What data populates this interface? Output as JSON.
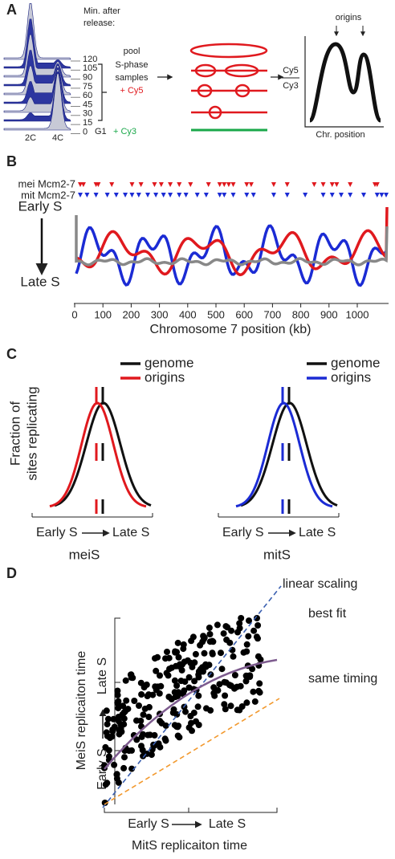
{
  "panel_a": {
    "letter": "A",
    "release_label_1": "Min. after",
    "release_label_2": "release:",
    "minutes": [
      120,
      105,
      90,
      75,
      60,
      45,
      30,
      15,
      0
    ],
    "dna_labels": [
      "2C",
      "4C"
    ],
    "pool_lines": [
      "pool",
      "S-phase",
      "samples"
    ],
    "cy5_label": "+ Cy5",
    "g1_label": "G1",
    "cy3_label": "+ Cy3",
    "ratio_top": "Cy5",
    "ratio_bottom": "Cy3",
    "origins_label": "origins",
    "chr_position_label": "Chr. position"
  },
  "panel_b": {
    "letter": "B",
    "mei_label": "mei Mcm2-7",
    "mit_label": "mit Mcm2-7",
    "early_label": "Early S",
    "late_label": "Late S",
    "x_label": "Chromosome 7 position (kb)",
    "xlim": [
      0,
      1100
    ],
    "xticks": [
      0,
      100,
      200,
      300,
      400,
      500,
      600,
      700,
      800,
      900,
      1000
    ]
  },
  "panel_c": {
    "letter": "C",
    "y_label_1": "Fraction of",
    "y_label_2": "sites replicating",
    "genome_label": "genome",
    "origins_label": "origins",
    "early_label": "Early S",
    "late_label": "Late S",
    "left_title": "meiS",
    "right_title": "mitS"
  },
  "panel_d": {
    "letter": "D",
    "y_label": "MeiS replicaiton time",
    "early_label": "Early S",
    "late_label": "Late S",
    "x_label": "MitS replicaiton time",
    "linear_label": "linear scaling",
    "best_fit_label": "best fit",
    "same_label": "same timing"
  }
}
